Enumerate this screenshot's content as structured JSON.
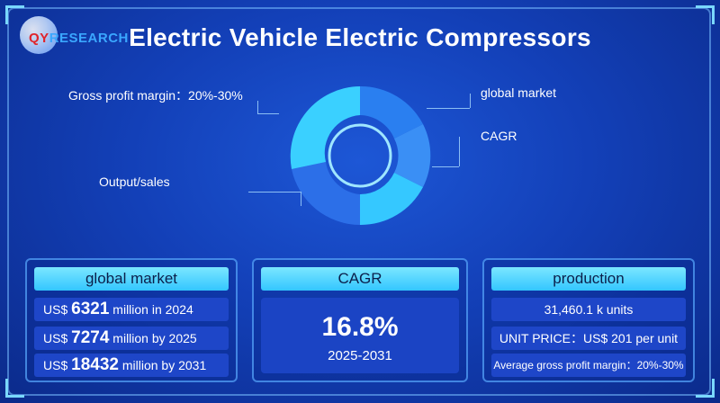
{
  "brand": {
    "logo_q": "Q",
    "logo_y": "Y",
    "logo_r": "R",
    "logo_rest": "ESEARCH"
  },
  "title": "Electric Vehicle Electric Compressors",
  "infographic_labels": {
    "gross_profit": "Gross profit margin：20%-30%",
    "output_sales": "Output/sales",
    "global_market": "global market",
    "cagr": "CAGR"
  },
  "global_market": {
    "header": "global market",
    "rows": [
      {
        "prefix": "US$ ",
        "value": "6321",
        "suffix": " million in 2024"
      },
      {
        "prefix": "US$ ",
        "value": "7274",
        "suffix": " million by 2025"
      },
      {
        "prefix": "US$ ",
        "value": "18432",
        "suffix": " million by 2031"
      }
    ]
  },
  "cagr": {
    "header": "CAGR",
    "value": "16.8%",
    "period": "2025-2031"
  },
  "production": {
    "header": "production",
    "units": "31,460.1 k units",
    "unit_price": "UNIT PRICE：US$ 201 per unit",
    "gross_margin": "Average gross profit margin：20%-30%"
  },
  "colors": {
    "accent": "#33c6ff",
    "background": "#1340b8",
    "row": "#1e46c8"
  }
}
